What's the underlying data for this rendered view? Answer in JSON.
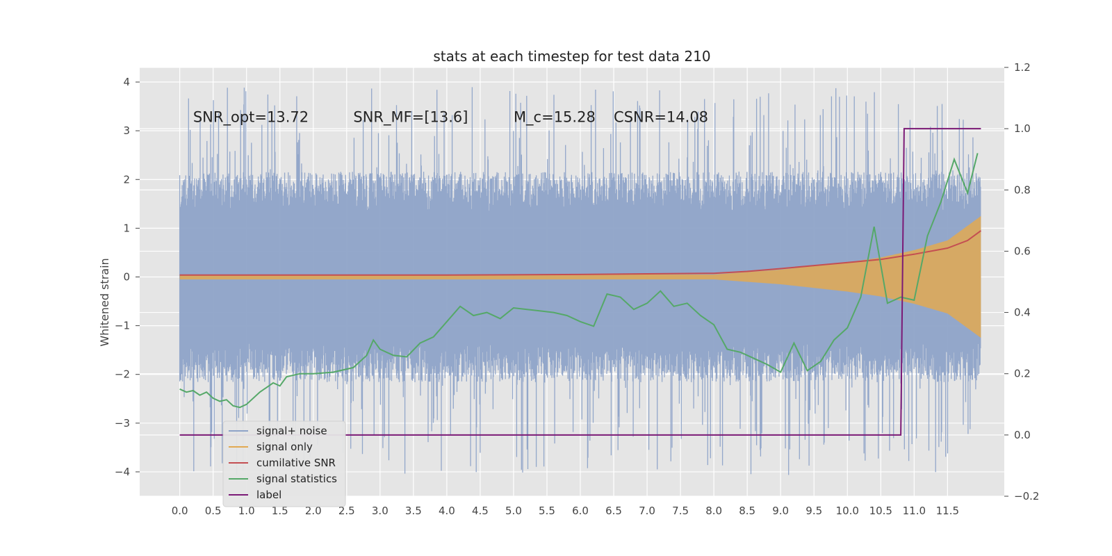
{
  "chart_data": {
    "type": "line",
    "title": "stats at each timestep for test data 210",
    "ylabel": "Whitened strain",
    "xlim": [
      -0.6,
      12.35
    ],
    "ylim": [
      -4.5,
      4.3
    ],
    "y2lim": [
      -0.2,
      1.2
    ],
    "x_ticks": [
      "0.0",
      "0.5",
      "1.0",
      "1.5",
      "2.0",
      "2.5",
      "3.0",
      "3.5",
      "4.0",
      "4.5",
      "5.0",
      "5.5",
      "6.0",
      "6.5",
      "7.0",
      "7.5",
      "8.0",
      "8.5",
      "9.0",
      "9.5",
      "10.0",
      "10.5",
      "11.0",
      "11.5"
    ],
    "y_ticks": [
      "4",
      "3",
      "2",
      "1",
      "0",
      "−1",
      "−2",
      "−3",
      "−4"
    ],
    "y2_ticks": [
      "1.2",
      "1.0",
      "0.8",
      "0.6",
      "0.4",
      "0.2",
      "0.0",
      "−0.2"
    ],
    "grid": true,
    "legend_position": "lower-left",
    "annotations": [
      {
        "text": "SNR_opt=13.72",
        "x": 0.2,
        "y": 3.15
      },
      {
        "text": "SNR_MF=[13.6]",
        "x": 2.6,
        "y": 3.15
      },
      {
        "text": "M_c=15.28",
        "x": 5.0,
        "y": 3.15
      },
      {
        "text": "CSNR=14.08",
        "x": 6.5,
        "y": 3.15
      }
    ],
    "series": [
      {
        "name": "signal+ noise",
        "axis": "left",
        "color": "#8ea3c8",
        "kind": "noise",
        "x_range": [
          0.0,
          12.0
        ],
        "typical_range": [
          -1.8,
          1.8
        ],
        "extreme_range": [
          -4.1,
          3.9
        ]
      },
      {
        "name": "signal only",
        "axis": "left",
        "color": "#e2a952",
        "kind": "chirp",
        "x_range": [
          0.0,
          12.0
        ],
        "envelope_x": [
          0.0,
          8.0,
          9.0,
          10.0,
          10.5,
          11.0,
          11.5,
          12.0
        ],
        "envelope_y": [
          0.05,
          0.05,
          0.15,
          0.3,
          0.4,
          0.55,
          0.75,
          1.25
        ]
      },
      {
        "name": "cumilative SNR",
        "axis": "right",
        "color": "#c44e52",
        "x": [
          0.0,
          1.0,
          2.0,
          3.0,
          4.0,
          5.0,
          6.0,
          7.0,
          8.0,
          8.5,
          9.0,
          9.5,
          10.0,
          10.5,
          11.0,
          11.5,
          11.8,
          12.0
        ],
        "y": [
          0.522,
          0.522,
          0.522,
          0.522,
          0.522,
          0.523,
          0.524,
          0.526,
          0.528,
          0.534,
          0.543,
          0.553,
          0.563,
          0.573,
          0.59,
          0.61,
          0.635,
          0.667
        ]
      },
      {
        "name": "signal statistics",
        "axis": "right",
        "color": "#55a868",
        "x": [
          0.0,
          0.1,
          0.2,
          0.3,
          0.4,
          0.5,
          0.6,
          0.7,
          0.8,
          0.9,
          1.0,
          1.2,
          1.4,
          1.5,
          1.6,
          1.8,
          2.0,
          2.3,
          2.6,
          2.8,
          2.9,
          3.0,
          3.2,
          3.4,
          3.6,
          3.8,
          4.0,
          4.2,
          4.4,
          4.6,
          4.8,
          5.0,
          5.2,
          5.4,
          5.6,
          5.8,
          6.0,
          6.2,
          6.4,
          6.6,
          6.8,
          7.0,
          7.2,
          7.4,
          7.6,
          7.8,
          8.0,
          8.2,
          8.4,
          8.6,
          8.8,
          9.0,
          9.2,
          9.4,
          9.6,
          9.8,
          10.0,
          10.2,
          10.4,
          10.6,
          10.8,
          11.0,
          11.2,
          11.4,
          11.6,
          11.8,
          11.95
        ],
        "y": [
          0.15,
          0.14,
          0.145,
          0.13,
          0.14,
          0.12,
          0.11,
          0.115,
          0.095,
          0.09,
          0.1,
          0.14,
          0.17,
          0.16,
          0.19,
          0.2,
          0.2,
          0.205,
          0.22,
          0.26,
          0.31,
          0.28,
          0.26,
          0.255,
          0.3,
          0.32,
          0.37,
          0.42,
          0.39,
          0.4,
          0.38,
          0.415,
          0.41,
          0.405,
          0.4,
          0.39,
          0.37,
          0.355,
          0.46,
          0.45,
          0.41,
          0.43,
          0.47,
          0.42,
          0.43,
          0.39,
          0.36,
          0.28,
          0.27,
          0.25,
          0.23,
          0.205,
          0.3,
          0.21,
          0.24,
          0.31,
          0.35,
          0.45,
          0.68,
          0.43,
          0.45,
          0.44,
          0.65,
          0.76,
          0.9,
          0.79,
          0.92
        ]
      },
      {
        "name": "label",
        "axis": "right",
        "color": "#7b1a76",
        "x": [
          0.0,
          10.8,
          10.85,
          12.0
        ],
        "y": [
          0.0,
          0.0,
          1.0,
          1.0
        ]
      }
    ]
  }
}
